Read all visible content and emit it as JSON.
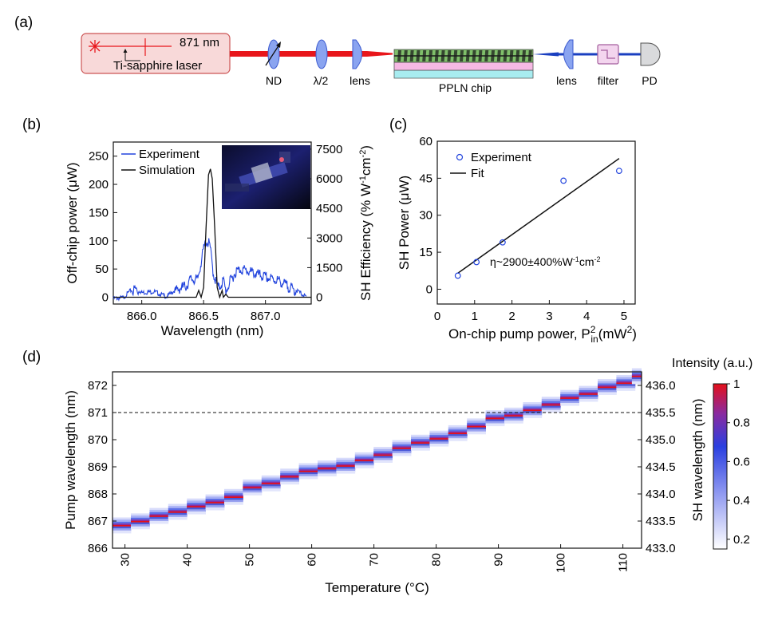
{
  "panel_labels": {
    "a": "(a)",
    "b": "(b)",
    "c": "(c)",
    "d": "(d)"
  },
  "setup": {
    "laser_label": "Ti-sapphire laser",
    "wavelength_label": "871 nm",
    "components": [
      "ND",
      "λ/2",
      "lens",
      "PPLN chip",
      "lens",
      "filter",
      "PD"
    ]
  },
  "colors": {
    "experiment": "#2244dd",
    "simulation": "#111111",
    "fit": "#111111",
    "beam_red": "#e8161b",
    "beam_blue": "#1a3fc0"
  },
  "chart_data": [
    {
      "id": "b",
      "type": "line",
      "xlabel": "Wavelength (nm)",
      "ylabel": "Off-chip power (μW)",
      "y2label_main": "SH Efficiency  (% W",
      "y2label_sup1": "-1",
      "y2label_mid": "cm",
      "y2label_sup2": "-2",
      "y2label_end": ")",
      "xlim": [
        865.77,
        867.37
      ],
      "ylim": [
        -12,
        275
      ],
      "y2lim": [
        -342,
        7860
      ],
      "xticks": [
        866.0,
        866.5,
        867.0
      ],
      "xtick_labels": [
        "866.0",
        "866.5",
        "867.0"
      ],
      "yticks": [
        0,
        50,
        100,
        150,
        200,
        250
      ],
      "y2ticks": [
        0,
        1500,
        3000,
        4500,
        6000,
        7500
      ],
      "legend": [
        "Experiment",
        "Simulation"
      ],
      "series": [
        {
          "name": "Experiment",
          "x": [
            865.77,
            865.85,
            865.9,
            865.95,
            866.0,
            866.1,
            866.2,
            866.3,
            866.36,
            866.4,
            866.45,
            866.5,
            866.52,
            866.55,
            866.58,
            866.62,
            866.66,
            866.68,
            866.72,
            866.76,
            866.8,
            866.9,
            867.0,
            867.1,
            867.2,
            867.28,
            867.33
          ],
          "y": [
            0,
            1,
            12,
            20,
            10,
            12,
            3,
            20,
            25,
            38,
            35,
            90,
            105,
            98,
            45,
            20,
            35,
            15,
            35,
            50,
            55,
            48,
            40,
            35,
            22,
            10,
            2
          ]
        },
        {
          "name": "Simulation",
          "x": [
            865.77,
            866.3,
            866.44,
            866.46,
            866.48,
            866.5,
            866.52,
            866.54,
            866.555,
            866.57,
            866.59,
            866.61,
            866.63,
            866.65,
            866.66,
            866.68,
            866.7,
            866.8,
            867.37
          ],
          "y": [
            0,
            0,
            0,
            350,
            0,
            500,
            3500,
            6200,
            6500,
            6000,
            3500,
            500,
            0,
            350,
            0,
            150,
            0,
            0,
            0
          ]
        }
      ]
    },
    {
      "id": "c",
      "type": "scatter",
      "xlabel_main": "On-chip pump power, P",
      "xlabel_sub": "in",
      "xlabel_sup": "2",
      "xlabel_units": "(mW",
      "xlabel_units_sup": "2",
      "xlabel_end": ")",
      "ylabel": "SH Power (μW)",
      "xlim": [
        0,
        5.3
      ],
      "ylim": [
        -6,
        60
      ],
      "xticks": [
        0,
        1,
        2,
        3,
        4,
        5
      ],
      "yticks": [
        0,
        15,
        30,
        45,
        60
      ],
      "legend": [
        "Experiment",
        "Fit"
      ],
      "annotation": "η~2900±400%W",
      "annotation_sup1": "-1",
      "annotation_mid": "cm",
      "annotation_sup2": "-2",
      "series": [
        {
          "name": "Experiment",
          "x": [
            0.55,
            1.05,
            1.75,
            3.38,
            4.87
          ],
          "y": [
            5.5,
            11,
            19,
            44,
            48
          ]
        },
        {
          "name": "Fit",
          "x": [
            0.55,
            4.87
          ],
          "y": [
            6.5,
            53
          ]
        }
      ]
    },
    {
      "id": "d",
      "type": "heatmap",
      "xlabel": "Temperature (°C)",
      "ylabel": "Pump wavelength (nm)",
      "y2label": "SH wavelength (nm)",
      "xlim": [
        28,
        113
      ],
      "ylim": [
        866.0,
        872.5
      ],
      "y2lim": [
        433.0,
        436.25
      ],
      "xticks": [
        30,
        40,
        50,
        60,
        70,
        80,
        90,
        100,
        110
      ],
      "yticks": [
        866,
        867,
        868,
        869,
        870,
        871,
        872
      ],
      "y2ticks": [
        433.0,
        433.5,
        434.0,
        434.5,
        435.0,
        435.5,
        436.0
      ],
      "y2tick_labels": [
        "433.0",
        "433.5",
        "434.0",
        "434.5",
        "435.0",
        "435.5",
        "436.0"
      ],
      "reference_line": 871,
      "colorbar_title": "Intensity (a.u.)",
      "colorbar_ticks": [
        0.2,
        0.4,
        0.6,
        0.8,
        1
      ],
      "colorbar_range": [
        0.15,
        1.0
      ],
      "steps": [
        {
          "t": 29.5,
          "w": 866.8
        },
        {
          "t": 32.5,
          "w": 866.95
        },
        {
          "t": 35.5,
          "w": 867.15
        },
        {
          "t": 38.5,
          "w": 867.3
        },
        {
          "t": 41.5,
          "w": 867.5
        },
        {
          "t": 44.5,
          "w": 867.65
        },
        {
          "t": 47.5,
          "w": 867.85
        },
        {
          "t": 50.5,
          "w": 868.2
        },
        {
          "t": 53.5,
          "w": 868.35
        },
        {
          "t": 56.5,
          "w": 868.6
        },
        {
          "t": 59.5,
          "w": 868.8
        },
        {
          "t": 62.5,
          "w": 868.9
        },
        {
          "t": 65.5,
          "w": 869.0
        },
        {
          "t": 68.5,
          "w": 869.2
        },
        {
          "t": 71.5,
          "w": 869.4
        },
        {
          "t": 74.5,
          "w": 869.65
        },
        {
          "t": 77.5,
          "w": 869.85
        },
        {
          "t": 80.5,
          "w": 870.0
        },
        {
          "t": 83.5,
          "w": 870.2
        },
        {
          "t": 86.5,
          "w": 870.45
        },
        {
          "t": 89.5,
          "w": 870.75
        },
        {
          "t": 92.5,
          "w": 870.85
        },
        {
          "t": 95.5,
          "w": 871.05
        },
        {
          "t": 98.5,
          "w": 871.25
        },
        {
          "t": 101.5,
          "w": 871.5
        },
        {
          "t": 104.5,
          "w": 871.65
        },
        {
          "t": 107.5,
          "w": 871.9
        },
        {
          "t": 110.5,
          "w": 872.05
        },
        {
          "t": 113.0,
          "w": 872.3
        }
      ]
    }
  ]
}
